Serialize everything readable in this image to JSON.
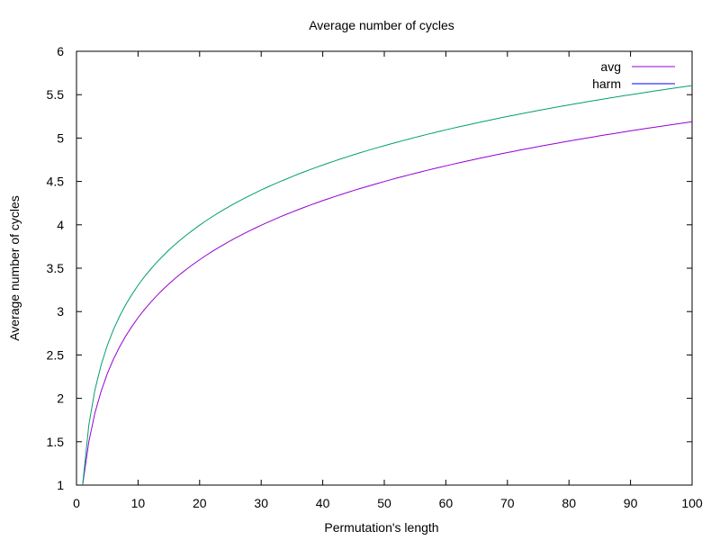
{
  "chart_data": {
    "type": "line",
    "title": "Average number of cycles",
    "xlabel": "Permutation's length",
    "ylabel": "Average number of cycles",
    "xlim": [
      0,
      100
    ],
    "ylim": [
      1,
      6
    ],
    "xticks": [
      0,
      10,
      20,
      30,
      40,
      50,
      60,
      70,
      80,
      90,
      100
    ],
    "yticks": [
      1,
      1.5,
      2,
      2.5,
      3,
      3.5,
      4,
      4.5,
      5,
      5.5,
      6
    ],
    "grid": false,
    "legend_position": "top-right",
    "series": [
      {
        "name": "avg",
        "color": "#9400d3",
        "formula": "harmonic_number_H_n",
        "x_range": [
          1,
          100
        ]
      },
      {
        "name": "harm",
        "color": "#009e73",
        "formula": "1 + ln(n)",
        "x_range": [
          1,
          100
        ],
        "legend_color": "#0000ff"
      }
    ]
  }
}
